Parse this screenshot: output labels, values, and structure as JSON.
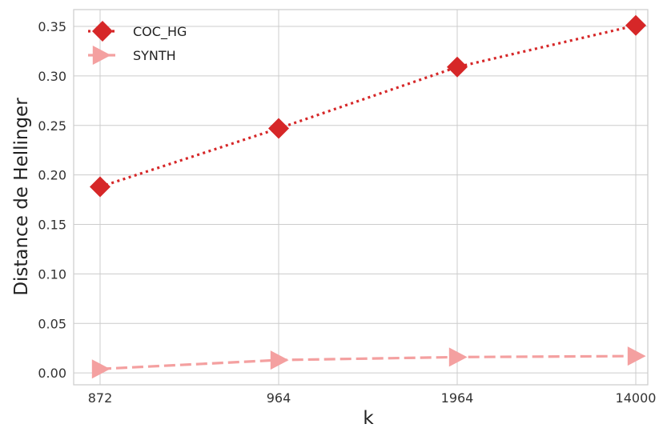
{
  "chart_data": {
    "type": "line",
    "categories": [
      "872",
      "964",
      "1964",
      "14000"
    ],
    "series": [
      {
        "name": "COC_HG",
        "values": [
          0.188,
          0.247,
          0.309,
          0.351
        ],
        "color": "#d62728",
        "line_style": "dotted",
        "marker": "diamond"
      },
      {
        "name": "SYNTH",
        "values": [
          0.004,
          0.013,
          0.016,
          0.017
        ],
        "color": "#f4a0a0",
        "line_style": "dashed",
        "marker": "triangle-right"
      }
    ],
    "xlabel": "k",
    "ylabel": "Distance de Hellinger",
    "ylim": [
      -0.012,
      0.367
    ],
    "yticks": [
      0.0,
      0.05,
      0.1,
      0.15,
      0.2,
      0.25,
      0.3,
      0.35
    ],
    "ytick_labels": [
      "0.00",
      "0.05",
      "0.10",
      "0.15",
      "0.20",
      "0.25",
      "0.30",
      "0.35"
    ],
    "grid": true,
    "legend_position": "top-left"
  }
}
